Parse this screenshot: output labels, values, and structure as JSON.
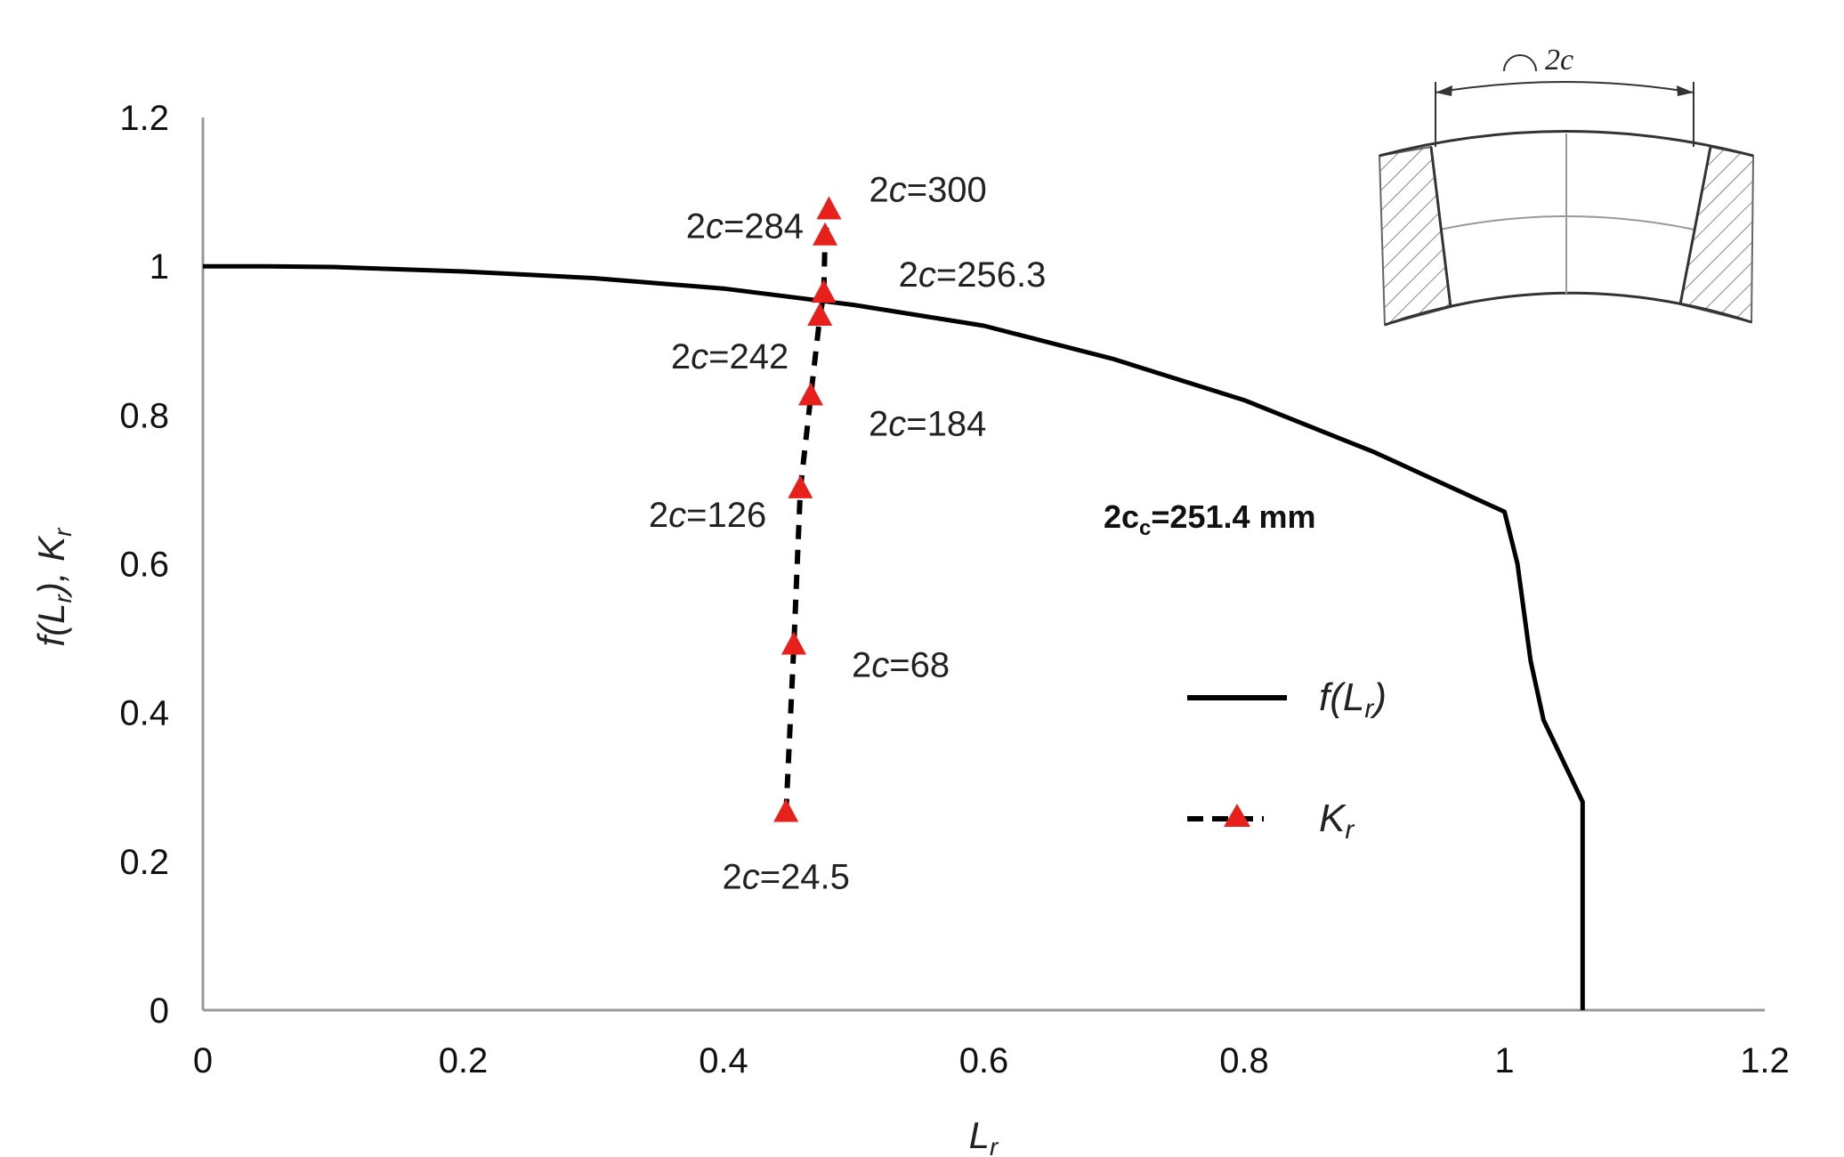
{
  "chart_data": {
    "type": "line",
    "xlabel": "L_r",
    "ylabel": "f(L_r), K_r",
    "xlim": [
      0,
      1.2
    ],
    "ylim": [
      0,
      1.2
    ],
    "xticks": [
      "0",
      "0.2",
      "0.4",
      "0.6",
      "0.8",
      "1",
      "1.2"
    ],
    "yticks": [
      "0",
      "0.2",
      "0.4",
      "0.6",
      "0.8",
      "1",
      "1.2"
    ],
    "grid": false,
    "legend_position": "lower-right",
    "series": [
      {
        "name": "f(L_r)",
        "style": "solid",
        "color": "#000000",
        "x": [
          0,
          0.05,
          0.1,
          0.2,
          0.3,
          0.4,
          0.5,
          0.6,
          0.7,
          0.8,
          0.9,
          0.95,
          1.0,
          1.01,
          1.02,
          1.03,
          1.06,
          1.06
        ],
        "y": [
          1.0,
          1.0,
          0.999,
          0.993,
          0.984,
          0.97,
          0.948,
          0.92,
          0.875,
          0.82,
          0.75,
          0.71,
          0.67,
          0.6,
          0.47,
          0.39,
          0.28,
          0.0
        ]
      },
      {
        "name": "K_r",
        "style": "dashed",
        "marker": "triangle",
        "color": "#000000",
        "marker_color": "#e8201c",
        "x": [
          0.448,
          0.454,
          0.459,
          0.467,
          0.474,
          0.477,
          0.478,
          0.481
        ],
        "y": [
          0.265,
          0.49,
          0.7,
          0.825,
          0.932,
          0.963,
          1.04,
          1.075
        ],
        "point_labels": [
          "2c=24.5",
          "2c=68",
          "2c=126",
          "2c=184",
          "2c=242",
          "2c=256.3",
          "2c=284",
          "2c=300"
        ]
      }
    ],
    "annotations": [
      {
        "text": "2c_c=251.4 mm"
      }
    ],
    "inset": {
      "label": "2c"
    }
  },
  "legend": {
    "f_label": "f(L_r)",
    "k_label": "K_r"
  }
}
